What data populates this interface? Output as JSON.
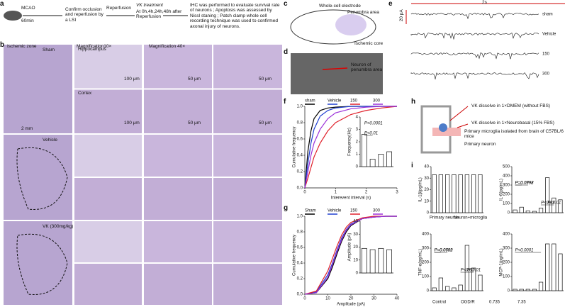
{
  "panels": {
    "labels": [
      "a",
      "b",
      "c",
      "d",
      "e",
      "f",
      "g",
      "h",
      "i"
    ]
  },
  "a": {
    "model": "MCAO",
    "duration": "60min",
    "confirm": "Confirm occlusion and reperfusion by a LSI",
    "reperfusion": "Reperfusion",
    "treatment": "VK treatment",
    "timing": "At 0h,4h,24h,48h after Reperfusion",
    "methods": "IHC was performed to evaluate survival rate of neurons ; Apoptosis was assessed by Nissl staning ; Patch clamp whole cell recording technique was used to confirmed axonal injury of neurons."
  },
  "b": {
    "zone": "Ischemic zone",
    "mag10": "Magnification10×",
    "mag40": "Magnification 40×",
    "groups": [
      "Sham",
      "Vehicle",
      "VK (300mg/kg)"
    ],
    "regions": [
      "Hippocampus",
      "Cortex"
    ],
    "scale_whole": "2 mm",
    "scale_10": "100 μm",
    "scale_40": "50 μm"
  },
  "c": {
    "electrode": "Whole-cell electrode",
    "penumbra": "Penumbra area",
    "core": "Ischemic core"
  },
  "d": {
    "label": "Neuron of penumbra area"
  },
  "e": {
    "time_scale": "2s",
    "current_scale": "20 pA",
    "traces": [
      "sham",
      "Vehicle",
      "150",
      "300"
    ]
  },
  "h": {
    "top": "VK dissolve in 1×DMEM (without FBS)",
    "bottom": "VK dissolve in 1×Neurobasal (15% FBS)",
    "microglia": "Primary microglia isolated from brain of C57BL/6 mice",
    "neuron": "Primary neuron"
  },
  "i_legend": [
    "Control",
    "OGD/R",
    "0.735",
    "7.35"
  ],
  "chart_data": [
    {
      "type": "line",
      "xlabel": "Interevent interval (s)",
      "ylabel": "Cumulative frequency",
      "x": [
        0,
        0.1,
        0.2,
        0.3,
        0.5,
        0.75,
        1,
        1.5,
        2,
        2.5,
        3
      ],
      "xlim": [
        0,
        3
      ],
      "xticks": [
        0,
        1,
        2,
        3
      ],
      "ylim": [
        0,
        1
      ],
      "yticks": [
        {
          "value": 0,
          "label": "0.0"
        },
        0.2,
        0.4,
        0.6,
        0.8,
        {
          "value": 1,
          "label": "1.0"
        }
      ],
      "series": [
        {
          "name": "sham",
          "color": "#000000",
          "values": [
            0,
            0.45,
            0.7,
            0.85,
            0.95,
            0.98,
            0.99,
            1,
            1,
            1,
            1
          ]
        },
        {
          "name": "Vehicle",
          "color": "#1f3fd1",
          "values": [
            0,
            0.3,
            0.55,
            0.72,
            0.88,
            0.95,
            0.98,
            1,
            1,
            1,
            1
          ]
        },
        {
          "name": "150",
          "color": "#e0202a",
          "values": [
            0,
            0.12,
            0.25,
            0.38,
            0.55,
            0.7,
            0.8,
            0.9,
            0.95,
            0.98,
            1
          ]
        },
        {
          "name": "300",
          "color": "#9b30d9",
          "values": [
            0,
            0.2,
            0.4,
            0.55,
            0.72,
            0.85,
            0.92,
            0.97,
            0.99,
            1,
            1
          ]
        }
      ]
    },
    {
      "type": "bar",
      "ylabel": "Frequency(Hz)",
      "categories": [
        null,
        null,
        null,
        null
      ],
      "values": [
        2.6,
        0.6,
        1.0,
        1.2
      ],
      "ylim": [
        0,
        4
      ],
      "yticks": [
        0,
        1,
        2,
        3,
        4
      ],
      "annotations": [
        "P<0.0001",
        "P<0.01"
      ]
    },
    {
      "type": "line",
      "xlabel": "Amplitude (pA)",
      "ylabel": "Cumulative frequency",
      "x": [
        0,
        5,
        10,
        12,
        14,
        16,
        18,
        20,
        25,
        30,
        35,
        40
      ],
      "xlim": [
        0,
        40
      ],
      "xticks": [
        0,
        10,
        20,
        30,
        40
      ],
      "ylim": [
        0,
        1
      ],
      "yticks": [
        {
          "value": 0,
          "label": "0.0"
        },
        0.2,
        0.4,
        0.6,
        0.8,
        {
          "value": 1,
          "label": "1.0"
        }
      ],
      "series": [
        {
          "name": "Sham",
          "color": "#000000",
          "values": [
            0,
            0.02,
            0.2,
            0.35,
            0.52,
            0.68,
            0.8,
            0.88,
            0.97,
            0.99,
            1,
            1
          ]
        },
        {
          "name": "Vehicle",
          "color": "#1f3fd1",
          "values": [
            0,
            0.03,
            0.25,
            0.4,
            0.57,
            0.72,
            0.83,
            0.9,
            0.97,
            0.99,
            1,
            1
          ]
        },
        {
          "name": "150",
          "color": "#e0202a",
          "values": [
            0,
            0.04,
            0.3,
            0.46,
            0.62,
            0.76,
            0.86,
            0.92,
            0.98,
            1,
            1,
            1
          ]
        },
        {
          "name": "300",
          "color": "#9b30d9",
          "values": [
            0,
            0.02,
            0.22,
            0.38,
            0.55,
            0.7,
            0.82,
            0.89,
            0.97,
            0.99,
            1,
            1
          ]
        }
      ]
    },
    {
      "type": "bar",
      "ylabel": "Amplitude (pA)",
      "categories": [
        null,
        null,
        null,
        null
      ],
      "values": [
        19,
        18,
        19,
        18
      ],
      "ylim": [
        0,
        40
      ],
      "yticks": [
        0,
        10,
        20,
        30,
        40
      ]
    },
    {
      "type": "bar",
      "ylabel": "IL-1β(pg/mL)",
      "categories": [
        null,
        null,
        null,
        null,
        null,
        null,
        null,
        null
      ],
      "values": [
        33,
        33,
        33,
        33,
        33,
        33,
        33,
        33
      ],
      "ylim": [
        0,
        40
      ],
      "yticks": [
        0,
        10,
        20,
        30,
        40
      ],
      "groups": [
        "Primary neuron",
        "Neuron+microglia"
      ]
    },
    {
      "type": "bar",
      "ylabel": "IL-6(pg/mL)",
      "categories": [
        null,
        null,
        null,
        null,
        null,
        null,
        null,
        null
      ],
      "values": [
        30,
        60,
        20,
        15,
        50,
        380,
        160,
        140
      ],
      "ylim": [
        0,
        500
      ],
      "yticks": [
        0,
        100,
        200,
        300,
        400,
        500
      ],
      "annotations": [
        "P<0.01",
        "P<0.01",
        "P=0.0798",
        "P=0.0992"
      ]
    },
    {
      "type": "bar",
      "ylabel": "TNF-α(pg/mL)",
      "categories": [
        null,
        null,
        null,
        null,
        null,
        null,
        null,
        null
      ],
      "values": [
        20,
        90,
        30,
        20,
        40,
        320,
        160,
        110
      ],
      "ylim": [
        0,
        400
      ],
      "yticks": [
        0,
        100,
        200,
        300,
        400
      ],
      "annotations": [
        "P<0.01",
        "P<0.01",
        "P=0.0782",
        "P=0.0589"
      ]
    },
    {
      "type": "bar",
      "ylabel": "MCP-1(pg/mL)",
      "categories": [
        null,
        null,
        null,
        null,
        null,
        null,
        null,
        null
      ],
      "values": [
        10,
        10,
        10,
        10,
        60,
        330,
        330,
        260
      ],
      "ylim": [
        0,
        400
      ],
      "yticks": [
        0,
        100,
        200,
        300,
        400
      ],
      "annotations": [
        "P<0.0001"
      ]
    }
  ]
}
